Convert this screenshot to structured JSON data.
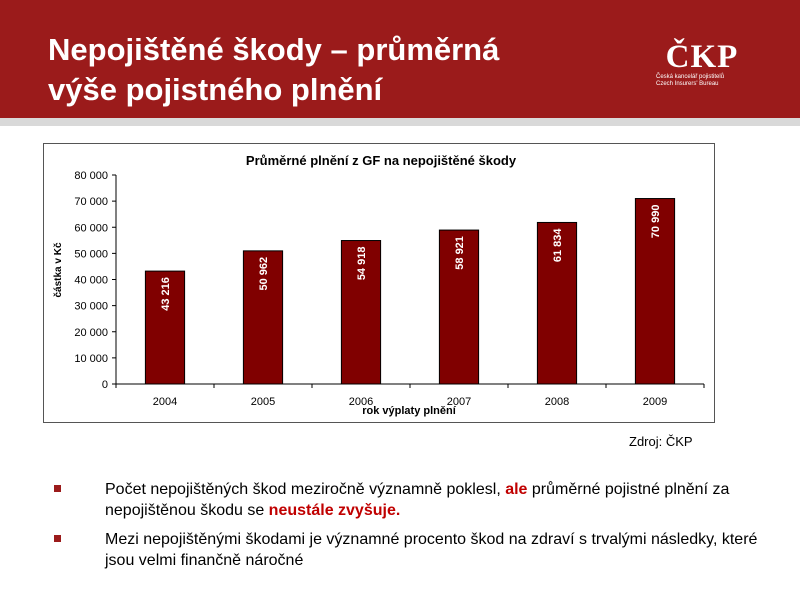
{
  "slide": {
    "title_line1": "Nepojištěné škody – průměrná",
    "title_line2": "výše pojistného plnění",
    "source": "Zdroj: ČKP"
  },
  "logo": {
    "text": "ČKP",
    "line1": "Česká kancelář pojistitelů",
    "line2": "Czech Insurers' Bureau"
  },
  "bullets": [
    {
      "part1": "Počet nepojištěných škod meziročně významně poklesl,  ",
      "highlight1": "ale",
      "part2": " průměrné pojistné plnění za nepojištěnou škodu se ",
      "highlight2": "neustále zvyšuje."
    },
    {
      "text": "Mezi nepojištěnými škodami je významné procento škod  na zdraví s trvalými následky, které jsou velmi finančně náročné"
    }
  ],
  "colors": {
    "brand_red": "#9b1b1b",
    "bar_fill": "#800000",
    "highlight_red": "#c00000"
  },
  "chart_data": {
    "type": "bar",
    "title": "Průměrné plnění z GF na nepojištěné škody",
    "xlabel": "rok výplaty plnění",
    "ylabel": "částka v Kč",
    "categories": [
      "2004",
      "2005",
      "2006",
      "2007",
      "2008",
      "2009"
    ],
    "values": [
      43216,
      50962,
      54918,
      58921,
      61834,
      70990
    ],
    "data_labels": [
      "43 216",
      "50 962",
      "54 918",
      "58 921",
      "61 834",
      "70 990"
    ],
    "yticks": [
      "0",
      "10 000",
      "20 000",
      "30 000",
      "40 000",
      "50 000",
      "60 000",
      "70 000",
      "80 000"
    ],
    "ylim": [
      0,
      80000
    ],
    "grid": false,
    "legend": "none"
  }
}
